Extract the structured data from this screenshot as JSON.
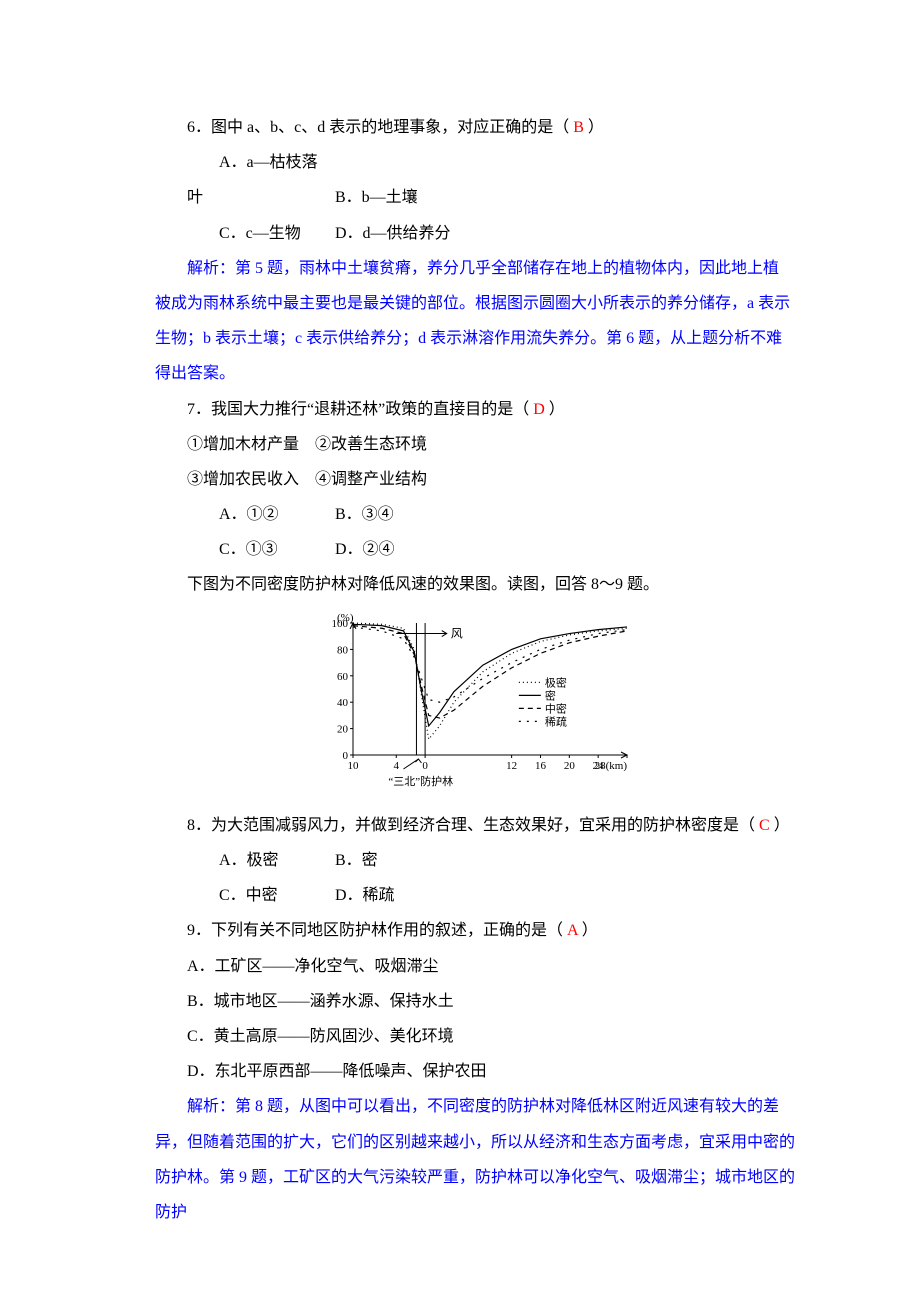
{
  "q6": {
    "stem": "6．图中 a、b、c、d 表示的地理事象，对应正确的是（",
    "answer": "B",
    "stem_close": "）",
    "A": "A．a—枯枝落叶",
    "B": "B．b—土壤",
    "C": "C．c—生物",
    "D": "D．d—供给养分"
  },
  "expl56_label": "解析：",
  "expl56_text": "第 5 题，雨林中土壤贫瘠，养分几乎全部储存在地上的植物体内，因此地上植被成为雨林系统中最主要也是最关键的部位。根据图示圆圈大小所表示的养分储存，a 表示生物；b 表示土壤；c 表示供给养分；d 表示淋溶作用流失养分。第 6 题，从上题分析不难得出答案。",
  "q7": {
    "stem": "7．我国大力推行“退耕还林”政策的直接目的是（",
    "answer": "D",
    "stem_close": "）",
    "sub1": "①增加木材产量　②改善生态环境",
    "sub2": "③增加农民收入　④调整产业结构",
    "A": "A．①②",
    "B": "B．③④",
    "C": "C．①③",
    "D": "D．②④"
  },
  "lead89": "下图为不同密度防护林对降低风速的效果图。读图，回答 8～9 题。",
  "chart": {
    "type": "line",
    "background_color": "#ffffff",
    "axis_color": "#000000",
    "xlim": [
      -10,
      28
    ],
    "ylim": [
      0,
      100
    ],
    "yticks": [
      0,
      20,
      40,
      60,
      80,
      100
    ],
    "xticks_left": [
      10,
      4,
      0
    ],
    "xticks_right": [
      12,
      16,
      20,
      24,
      28
    ],
    "x_right_label_suffix": "(km)",
    "y_label": "(%)",
    "tree_band_x": [
      -1.2,
      0
    ],
    "wind_label": "风",
    "bottom_label": "“三北”防护林",
    "legend": [
      {
        "name": "极密",
        "dash": "1 3"
      },
      {
        "name": "密",
        "dash": ""
      },
      {
        "name": "中密",
        "dash": "5 4"
      },
      {
        "name": "稀疏",
        "dash": "2 6"
      }
    ],
    "series": {
      "极密": [
        {
          "x": -10,
          "y": 100
        },
        {
          "x": -6,
          "y": 99
        },
        {
          "x": -3,
          "y": 96
        },
        {
          "x": -1.5,
          "y": 80
        },
        {
          "x": -0.5,
          "y": 45
        },
        {
          "x": 0.5,
          "y": 12
        },
        {
          "x": 2,
          "y": 22
        },
        {
          "x": 4,
          "y": 40
        },
        {
          "x": 8,
          "y": 63
        },
        {
          "x": 12,
          "y": 77
        },
        {
          "x": 16,
          "y": 86
        },
        {
          "x": 20,
          "y": 91
        },
        {
          "x": 24,
          "y": 94
        },
        {
          "x": 28,
          "y": 96
        }
      ],
      "密": [
        {
          "x": -10,
          "y": 99
        },
        {
          "x": -6,
          "y": 98
        },
        {
          "x": -3,
          "y": 94
        },
        {
          "x": -1.5,
          "y": 78
        },
        {
          "x": -0.5,
          "y": 48
        },
        {
          "x": 0.5,
          "y": 22
        },
        {
          "x": 2,
          "y": 32
        },
        {
          "x": 4,
          "y": 48
        },
        {
          "x": 8,
          "y": 68
        },
        {
          "x": 12,
          "y": 80
        },
        {
          "x": 16,
          "y": 88
        },
        {
          "x": 20,
          "y": 92
        },
        {
          "x": 24,
          "y": 95
        },
        {
          "x": 28,
          "y": 97
        }
      ],
      "中密": [
        {
          "x": -10,
          "y": 98
        },
        {
          "x": -6,
          "y": 96
        },
        {
          "x": -3,
          "y": 92
        },
        {
          "x": -1.5,
          "y": 76
        },
        {
          "x": -0.5,
          "y": 52
        },
        {
          "x": 0.5,
          "y": 30
        },
        {
          "x": 2,
          "y": 28
        },
        {
          "x": 4,
          "y": 34
        },
        {
          "x": 8,
          "y": 52
        },
        {
          "x": 12,
          "y": 66
        },
        {
          "x": 16,
          "y": 77
        },
        {
          "x": 20,
          "y": 85
        },
        {
          "x": 24,
          "y": 90
        },
        {
          "x": 28,
          "y": 94
        }
      ],
      "稀疏": [
        {
          "x": -10,
          "y": 97
        },
        {
          "x": -6,
          "y": 94
        },
        {
          "x": -3,
          "y": 88
        },
        {
          "x": -1.5,
          "y": 74
        },
        {
          "x": -0.5,
          "y": 58
        },
        {
          "x": 0.5,
          "y": 42
        },
        {
          "x": 2,
          "y": 40
        },
        {
          "x": 4,
          "y": 44
        },
        {
          "x": 8,
          "y": 58
        },
        {
          "x": 12,
          "y": 70
        },
        {
          "x": 16,
          "y": 80
        },
        {
          "x": 20,
          "y": 87
        },
        {
          "x": 24,
          "y": 92
        },
        {
          "x": 28,
          "y": 95
        }
      ]
    },
    "line_width": 1.2,
    "font_size": 11
  },
  "q8": {
    "stem": "8．为大范围减弱风力，并做到经济合理、生态效果好，宜采用的防护林密度是（",
    "answer": "C",
    "stem_close": "）",
    "A": "A．极密",
    "B": "B．密",
    "C": "C．中密",
    "D": "D．稀疏"
  },
  "q9": {
    "stem": "9．下列有关不同地区防护林作用的叙述，正确的是（",
    "answer": "A",
    "stem_close": "）",
    "A": "A．工矿区——净化空气、吸烟滞尘",
    "B": "B．城市地区——涵养水源、保持水土",
    "C": "C．黄土高原——防风固沙、美化环境",
    "D": "D．东北平原西部——降低噪声、保护农田"
  },
  "expl89_label": "解析：",
  "expl89_text": "第 8 题，从图中可以看出，不同密度的防护林对降低林区附近风速有较大的差异，但随着范围的扩大，它们的区别越来越小，所以从经济和生态方面考虑，宜采用中密的防护林。第 9 题，工矿区的大气污染较严重，防护林可以净化空气、吸烟滞尘；城市地区的防护"
}
